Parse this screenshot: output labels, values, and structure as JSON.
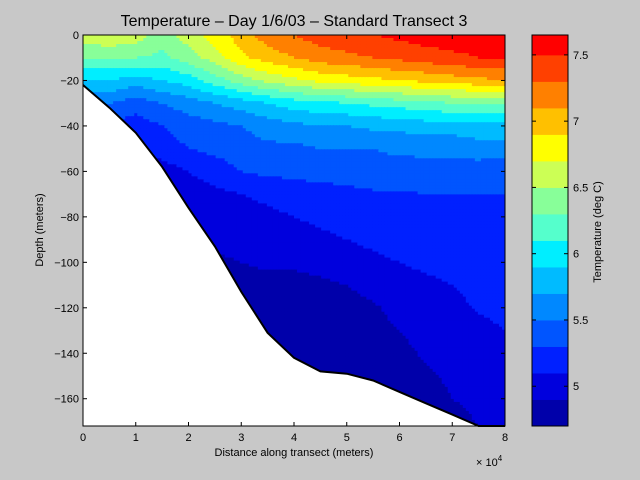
{
  "chart_data": {
    "type": "heatmap",
    "subtype": "filled-contour-section",
    "title": "Temperature – Day 1/6/03 – Standard Transect 3",
    "xlabel": "Distance along transect (meters)",
    "ylabel": "Depth (meters)",
    "x_multiplier_label": "× 10",
    "x_multiplier_exponent": "4",
    "xlim": [
      0,
      80000
    ],
    "ylim": [
      -172,
      0
    ],
    "xticks": [
      0,
      10000,
      20000,
      30000,
      40000,
      50000,
      60000,
      70000,
      80000
    ],
    "xtick_labels": [
      "0",
      "1",
      "2",
      "3",
      "4",
      "5",
      "6",
      "7",
      "8"
    ],
    "yticks": [
      0,
      -20,
      -40,
      -60,
      -80,
      -100,
      -120,
      -140,
      -160
    ],
    "ytick_labels": [
      "0",
      "−20",
      "−40",
      "−60",
      "−80",
      "−100",
      "−120",
      "−140",
      "−160"
    ],
    "colorbar": {
      "label": "Temperature (deg C)",
      "range": [
        4.7,
        7.65
      ],
      "ticks": [
        5,
        5.5,
        6,
        6.5,
        7,
        7.5
      ],
      "tick_labels": [
        "5",
        "5.5",
        "6",
        "6.5",
        "7",
        "7.5"
      ],
      "levels": [
        4.7,
        4.9,
        5.1,
        5.3,
        5.5,
        5.7,
        5.9,
        6.1,
        6.3,
        6.5,
        6.7,
        6.9,
        7.1,
        7.3,
        7.5,
        7.65
      ],
      "colors": [
        "#0000aa",
        "#0000dd",
        "#0020ff",
        "#0055ff",
        "#0088ff",
        "#00bbff",
        "#00eeff",
        "#55ffcc",
        "#88ff99",
        "#ccff55",
        "#ffff00",
        "#ffc000",
        "#ff8000",
        "#ff4000",
        "#ff0000",
        "#c00000"
      ]
    },
    "bottom_profile": {
      "x": [
        0,
        5000,
        10000,
        15000,
        20000,
        25000,
        30000,
        35000,
        40000,
        45000,
        50000,
        55000,
        60000,
        65000,
        70000,
        75000,
        80000
      ],
      "depth": [
        -22,
        -32,
        -43,
        -58,
        -76,
        -93,
        -113,
        -131,
        -142,
        -148,
        -149,
        -152,
        -157,
        -162,
        -167,
        -172,
        -172
      ]
    },
    "temperature_field": {
      "x": [
        0,
        5000,
        10000,
        15000,
        20000,
        25000,
        30000,
        35000,
        40000,
        45000,
        50000,
        55000,
        60000,
        65000,
        70000,
        75000,
        80000
      ],
      "depth": [
        0,
        -10,
        -20,
        -30,
        -40,
        -50,
        -60,
        -70,
        -80,
        -90,
        -100,
        -110,
        -120,
        -130,
        -140,
        -150,
        -160,
        -172
      ],
      "values_degC": [
        [
          6.6,
          6.7,
          6.6,
          6.4,
          6.6,
          6.8,
          7.0,
          7.2,
          7.3,
          7.4,
          7.45,
          7.5,
          7.55,
          7.6,
          7.62,
          7.63,
          7.65
        ],
        [
          6.3,
          6.3,
          6.3,
          6.25,
          6.4,
          6.6,
          6.85,
          7.0,
          7.1,
          7.2,
          7.25,
          7.3,
          7.35,
          7.4,
          7.45,
          7.5,
          7.5
        ],
        [
          5.9,
          5.9,
          5.8,
          5.9,
          6.0,
          6.2,
          6.4,
          6.55,
          6.65,
          6.75,
          6.8,
          6.85,
          6.9,
          6.95,
          7.0,
          7.05,
          7.1
        ],
        [
          5.5,
          5.5,
          5.4,
          5.5,
          5.6,
          5.7,
          5.8,
          5.9,
          6.0,
          6.05,
          6.1,
          6.15,
          6.2,
          6.25,
          6.3,
          6.3,
          6.35
        ],
        [
          5.3,
          5.25,
          5.2,
          5.3,
          5.4,
          5.45,
          5.5,
          5.6,
          5.65,
          5.7,
          5.7,
          5.75,
          5.75,
          5.8,
          5.8,
          5.85,
          5.85
        ],
        [
          5.1,
          5.1,
          5.1,
          5.2,
          5.3,
          5.35,
          5.4,
          5.45,
          5.45,
          5.5,
          5.5,
          5.5,
          5.55,
          5.55,
          5.55,
          5.6,
          5.6
        ],
        [
          4.95,
          4.98,
          5.0,
          5.0,
          5.1,
          5.2,
          5.3,
          5.35,
          5.35,
          5.38,
          5.38,
          5.4,
          5.4,
          5.42,
          5.42,
          5.4,
          5.35
        ],
        [
          4.9,
          4.92,
          4.95,
          4.95,
          5.0,
          5.05,
          5.1,
          5.15,
          5.2,
          5.22,
          5.25,
          5.28,
          5.28,
          5.3,
          5.3,
          5.3,
          5.3
        ],
        [
          4.85,
          4.88,
          4.9,
          4.9,
          4.95,
          5.0,
          5.02,
          5.05,
          5.1,
          5.15,
          5.2,
          5.22,
          5.25,
          5.28,
          5.28,
          5.28,
          5.28
        ],
        [
          4.8,
          4.85,
          4.85,
          4.85,
          4.9,
          4.92,
          4.95,
          4.98,
          5.0,
          5.05,
          5.1,
          5.15,
          5.2,
          5.22,
          5.22,
          5.2,
          5.2
        ],
        [
          4.8,
          4.8,
          4.82,
          4.82,
          4.85,
          4.88,
          4.9,
          4.92,
          4.92,
          4.95,
          5.0,
          5.05,
          5.1,
          5.15,
          5.18,
          5.18,
          5.18
        ],
        [
          4.78,
          4.78,
          4.8,
          4.8,
          4.82,
          4.85,
          4.86,
          4.86,
          4.86,
          4.87,
          4.9,
          4.95,
          5.0,
          5.05,
          5.1,
          5.15,
          5.15
        ],
        [
          4.76,
          4.76,
          4.78,
          4.78,
          4.8,
          4.82,
          4.82,
          4.82,
          4.82,
          4.83,
          4.85,
          4.88,
          4.95,
          5.0,
          5.05,
          5.12,
          5.15
        ],
        [
          4.75,
          4.75,
          4.76,
          4.76,
          4.78,
          4.8,
          4.8,
          4.8,
          4.8,
          4.8,
          4.82,
          4.85,
          4.9,
          4.96,
          5.0,
          5.05,
          5.1
        ],
        [
          4.74,
          4.74,
          4.75,
          4.75,
          4.76,
          4.78,
          4.78,
          4.78,
          4.78,
          4.78,
          4.8,
          4.82,
          4.86,
          4.92,
          4.96,
          5.0,
          5.05
        ],
        [
          4.73,
          4.73,
          4.74,
          4.74,
          4.75,
          4.76,
          4.76,
          4.76,
          4.76,
          4.76,
          4.78,
          4.8,
          4.84,
          4.88,
          4.92,
          4.95,
          4.98
        ],
        [
          4.72,
          4.72,
          4.73,
          4.73,
          4.74,
          4.75,
          4.75,
          4.75,
          4.75,
          4.75,
          4.76,
          4.78,
          4.82,
          4.86,
          4.9,
          4.92,
          4.95
        ],
        [
          4.71,
          4.71,
          4.72,
          4.72,
          4.73,
          4.74,
          4.74,
          4.74,
          4.74,
          4.74,
          4.75,
          4.77,
          4.8,
          4.84,
          4.87,
          4.9,
          4.92
        ]
      ]
    },
    "grid": false,
    "legend": "colorbar-right"
  }
}
